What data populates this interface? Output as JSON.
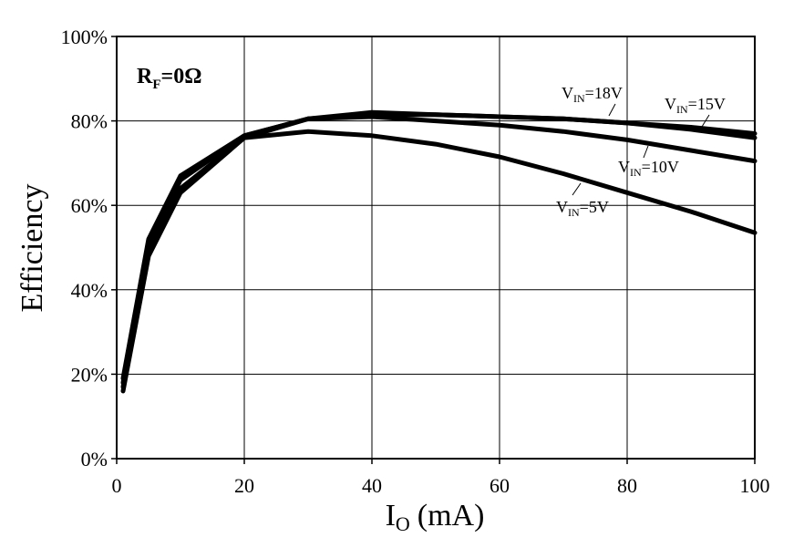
{
  "chart_data": {
    "type": "line",
    "xlabel_main": "I",
    "xlabel_sub": "O",
    "xlabel_unit": "(mA)",
    "ylabel": "Efficiency",
    "xlim": [
      0,
      100
    ],
    "ylim": [
      0,
      100
    ],
    "x_ticks": [
      "0",
      "20",
      "40",
      "60",
      "80",
      "100"
    ],
    "y_ticks": [
      "0%",
      "20%",
      "40%",
      "60%",
      "80%",
      "100%"
    ],
    "grid": true,
    "line_color": "#000000",
    "annotation_rf": {
      "main": "R",
      "sub": "F",
      "rest": "=0Ω"
    },
    "series": [
      {
        "name": "V_IN=5V",
        "label_main": "V",
        "label_sub": "IN",
        "label_rest": "=5V",
        "x": [
          1,
          5,
          10,
          20,
          30,
          40,
          50,
          60,
          70,
          80,
          90,
          100
        ],
        "y": [
          16,
          48,
          63,
          76,
          77.5,
          76.5,
          74.5,
          71.5,
          67.5,
          63,
          58.5,
          53.5
        ]
      },
      {
        "name": "V_IN=10V",
        "label_main": "V",
        "label_sub": "IN",
        "label_rest": "=10V",
        "x": [
          1,
          5,
          10,
          20,
          30,
          40,
          50,
          60,
          70,
          80,
          90,
          100
        ],
        "y": [
          17,
          49,
          64,
          76,
          80.5,
          81,
          80,
          79,
          77.5,
          75.5,
          73,
          70.5
        ]
      },
      {
        "name": "V_IN=15V",
        "label_main": "V",
        "label_sub": "IN",
        "label_rest": "=15V",
        "x": [
          1,
          5,
          10,
          20,
          30,
          40,
          50,
          60,
          70,
          80,
          90,
          100
        ],
        "y": [
          18,
          51,
          66,
          76.5,
          80.5,
          81.5,
          81.5,
          81,
          80.5,
          79.5,
          78,
          76
        ]
      },
      {
        "name": "V_IN=18V",
        "label_main": "V",
        "label_sub": "IN",
        "label_rest": "=18V",
        "x": [
          1,
          5,
          10,
          20,
          30,
          40,
          50,
          60,
          70,
          80,
          90,
          100
        ],
        "y": [
          19,
          52,
          67,
          76.5,
          80.5,
          82,
          81.5,
          81,
          80.5,
          79.5,
          78.5,
          77
        ]
      }
    ]
  }
}
